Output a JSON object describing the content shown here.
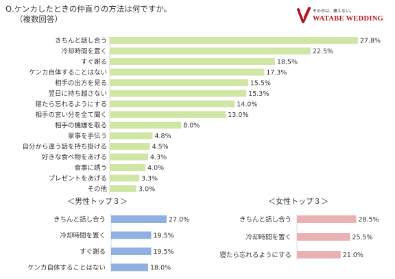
{
  "question": "Q.ケンカしたときの仲直りの方法は何ですか。",
  "note": "（複数回答）",
  "logo": {
    "name": "wedding-logo-icon",
    "tagline": "その日は、裏えない。",
    "brand": "WATABE WEDDING"
  },
  "colors": {
    "main_bar": "#cfe6a4",
    "male_bar": "#8fb0e0",
    "female_bar": "#eab0b2",
    "gridline": "#d9d9d9"
  },
  "chart_data": [
    {
      "type": "bar",
      "orientation": "horizontal",
      "categories": [
        "きちんと話し合う",
        "冷却時間を置く",
        "すぐ謝る",
        "ケンカ自体することはない",
        "相手の出方を見る",
        "翌日に持ち越さない",
        "寝たら忘れるようにする",
        "相手の言い分を全て聞く",
        "相手の機嫌を取る",
        "家事を手伝う",
        "自分から違う話を持ち掛ける",
        "好きな食べ物をあげる",
        "食事に誘う",
        "プレゼントをあげる",
        "その他"
      ],
      "values": [
        27.8,
        22.5,
        18.5,
        17.3,
        15.5,
        15.3,
        14.0,
        13.0,
        8.0,
        4.8,
        4.5,
        4.3,
        4.0,
        3.3,
        3.0
      ],
      "labels": [
        "27.8%",
        "22.5%",
        "18.5%",
        "17.3%",
        "15.5%",
        "15.3%",
        "14.0%",
        "13.0%",
        "8.0%",
        "4.8%",
        "4.5%",
        "4.3%",
        "4.0%",
        "3.3%",
        "3.0%"
      ],
      "xlim": [
        0,
        28
      ]
    },
    {
      "type": "bar",
      "orientation": "horizontal",
      "title": "＜男性トップ３＞",
      "categories": [
        "きちんと話し合う",
        "冷却時間を置く",
        "すぐ謝る",
        "ケンカ自体することはない"
      ],
      "values": [
        27.0,
        19.5,
        19.5,
        18.0
      ],
      "labels": [
        "27.0%",
        "19.5%",
        "19.5%",
        "18.0%"
      ],
      "xlim": [
        0,
        28
      ]
    },
    {
      "type": "bar",
      "orientation": "horizontal",
      "title": "＜女性トップ３＞",
      "categories": [
        "きちんと話し合う",
        "冷却時間を置く",
        "寝たら忘れるようにする"
      ],
      "values": [
        28.5,
        25.5,
        21.0
      ],
      "labels": [
        "28.5%",
        "25.5%",
        "21.0%"
      ],
      "xlim": [
        0,
        28
      ]
    }
  ]
}
